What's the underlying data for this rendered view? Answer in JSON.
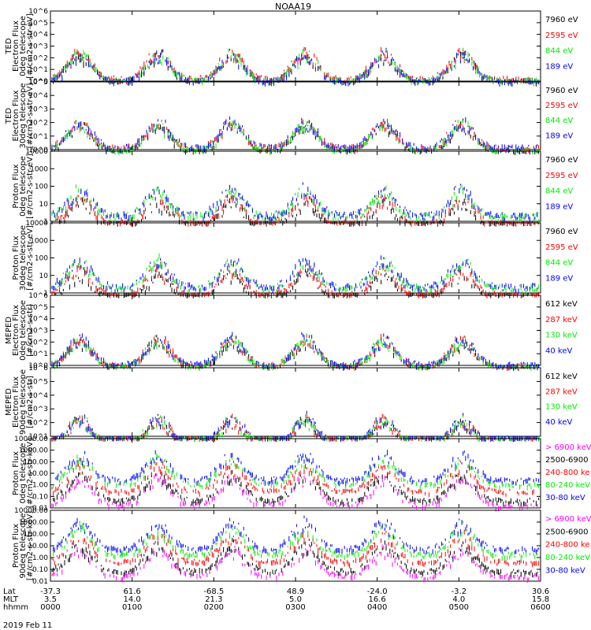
{
  "title": "NOAA19",
  "date_label": "2019 Feb 11",
  "colors": {
    "blue": "#0000ff",
    "red": "#ff0000",
    "green": "#00ee00",
    "black": "#000000",
    "magenta": "#ff00ff"
  },
  "xaxis": {
    "row_labels": [
      "Lat",
      "MLT",
      "hhmm"
    ],
    "ticks": [
      {
        "lat": "-37.3",
        "mlt": "3.5",
        "hhmm": "0000"
      },
      {
        "lat": "61.6",
        "mlt": "14.0",
        "hhmm": "0100"
      },
      {
        "lat": "-68.5",
        "mlt": "21.3",
        "hhmm": "0200"
      },
      {
        "lat": "48.9",
        "mlt": "5.0",
        "hhmm": "0300"
      },
      {
        "lat": "-24.0",
        "mlt": "16.6",
        "hhmm": "0400"
      },
      {
        "lat": "-3.2",
        "mlt": "4.0",
        "hhmm": "0500"
      },
      {
        "lat": "30.6",
        "mlt": "15.8",
        "hhmm": "0600"
      }
    ]
  },
  "chart_data": [
    {
      "type": "scatter",
      "panel": "ted-electron-0deg",
      "ylabel": [
        "TED",
        "Electron Flux",
        "0deg telescope",
        "[#/cm2-s-str-eV]"
      ],
      "yscale": "log",
      "ylim": [
        1,
        1000000
      ],
      "yticks": [
        "10^0",
        "10^1",
        "10^2",
        "10^3",
        "10^4",
        "10^5",
        "10^6"
      ],
      "legend": [
        {
          "label": "7960 eV",
          "color": "#000000"
        },
        {
          "label": "2595 eV",
          "color": "#ff0000"
        },
        {
          "label": "844 eV",
          "color": "#00ee00"
        },
        {
          "label": "189 eV",
          "color": "#0000ff"
        }
      ],
      "series": [
        {
          "name": "7960 eV",
          "color": "#000000",
          "level": 1.2
        },
        {
          "name": "2595 eV",
          "color": "#ff0000",
          "level": 1.8
        },
        {
          "name": "844 eV",
          "color": "#00ee00",
          "level": 1.3
        },
        {
          "name": "189 eV",
          "color": "#0000ff",
          "level": 1.1
        }
      ]
    },
    {
      "type": "scatter",
      "panel": "ted-electron-30deg",
      "ylabel": [
        "TED",
        "Electron Flux",
        "30deg telescope",
        "[#/cm2-s-str-eV]"
      ],
      "yscale": "log",
      "ylim": [
        1,
        100000
      ],
      "yticks": [
        "10^0",
        "10^1",
        "10^2",
        "10^3",
        "10^4",
        "10^5"
      ],
      "legend": [
        {
          "label": "7960 eV",
          "color": "#000000"
        },
        {
          "label": "2595 eV",
          "color": "#ff0000"
        },
        {
          "label": "844 eV",
          "color": "#00ee00"
        },
        {
          "label": "189 eV",
          "color": "#0000ff"
        }
      ],
      "series": [
        {
          "name": "7960 eV",
          "color": "#000000",
          "level": 1.0
        },
        {
          "name": "2595 eV",
          "color": "#ff0000",
          "level": 1.5
        },
        {
          "name": "844 eV",
          "color": "#00ee00",
          "level": 1.1
        },
        {
          "name": "189 eV",
          "color": "#0000ff",
          "level": 1.6
        }
      ]
    },
    {
      "type": "scatter",
      "panel": "ted-proton-0deg",
      "ylabel": [
        "Proton Flux",
        "0deg telescope",
        "[#/cm2-s-str-eV]"
      ],
      "yscale": "log",
      "ylim": [
        1,
        10000
      ],
      "yticks": [
        "1",
        "10",
        "100",
        "1000",
        "10000"
      ],
      "legend": [
        {
          "label": "7960 eV",
          "color": "#000000"
        },
        {
          "label": "2595 eV",
          "color": "#ff0000"
        },
        {
          "label": "844 eV",
          "color": "#00ee00"
        },
        {
          "label": "189 eV",
          "color": "#0000ff"
        }
      ],
      "series": [
        {
          "name": "7960 eV",
          "color": "#000000",
          "level": 0.5
        },
        {
          "name": "2595 eV",
          "color": "#ff0000",
          "level": 0.8
        },
        {
          "name": "844 eV",
          "color": "#00ee00",
          "level": 2.0
        },
        {
          "name": "189 eV",
          "color": "#0000ff",
          "level": 2.3
        }
      ]
    },
    {
      "type": "scatter",
      "panel": "ted-proton-30deg",
      "ylabel": [
        "Proton Flux",
        "30deg telescope",
        "[#/cm2-s-str-eV]"
      ],
      "yscale": "log",
      "ylim": [
        1,
        10000
      ],
      "yticks": [
        "1",
        "10",
        "100",
        "1000",
        "10000"
      ],
      "legend": [
        {
          "label": "7960 eV",
          "color": "#000000"
        },
        {
          "label": "2595 eV",
          "color": "#ff0000"
        },
        {
          "label": "844 eV",
          "color": "#00ee00"
        },
        {
          "label": "189 eV",
          "color": "#0000ff"
        }
      ],
      "series": [
        {
          "name": "7960 eV",
          "color": "#000000",
          "level": 0.5
        },
        {
          "name": "2595 eV",
          "color": "#ff0000",
          "level": 0.8
        },
        {
          "name": "844 eV",
          "color": "#00ee00",
          "level": 2.0
        },
        {
          "name": "189 eV",
          "color": "#0000ff",
          "level": 2.4
        }
      ]
    },
    {
      "type": "scatter",
      "panel": "meped-electron-0deg",
      "ylabel": [
        "MEPED",
        "Electron Flux",
        "0deg telescope",
        "[#/cm2-s-str]"
      ],
      "yscale": "log",
      "ylim": [
        1,
        1000000
      ],
      "yticks": [
        "10^0",
        "10^1",
        "10^2",
        "10^3",
        "10^4",
        "10^5",
        "10^6"
      ],
      "legend": [
        {
          "label": "612 keV",
          "color": "#000000"
        },
        {
          "label": "287 keV",
          "color": "#ff0000"
        },
        {
          "label": "130 keV",
          "color": "#00ee00"
        },
        {
          "label": "40 keV",
          "color": "#0000ff"
        }
      ],
      "series": [
        {
          "name": "612 keV",
          "color": "#000000",
          "level": 0.9
        },
        {
          "name": "287 keV",
          "color": "#ff0000",
          "level": 1.1
        },
        {
          "name": "130 keV",
          "color": "#00ee00",
          "level": 1.0
        },
        {
          "name": "40 keV",
          "color": "#0000ff",
          "level": 1.4
        }
      ]
    },
    {
      "type": "scatter",
      "panel": "meped-electron-90deg",
      "ylabel": [
        "MEPED",
        "Electron Flux",
        "90deg telescope",
        "[#/cm2-s-str]"
      ],
      "yscale": "log",
      "ylim": [
        10,
        1000000
      ],
      "yticks": [
        "10^1",
        "10^2",
        "10^3",
        "10^4",
        "10^5",
        "10^6"
      ],
      "legend": [
        {
          "label": "612 keV",
          "color": "#000000"
        },
        {
          "label": "287 keV",
          "color": "#ff0000"
        },
        {
          "label": "130 keV",
          "color": "#00ee00"
        },
        {
          "label": "40 keV",
          "color": "#0000ff"
        }
      ],
      "series": [
        {
          "name": "612 keV",
          "color": "#000000",
          "level": 2.0
        },
        {
          "name": "287 keV",
          "color": "#ff0000",
          "level": 2.3
        },
        {
          "name": "130 keV",
          "color": "#00ee00",
          "level": 2.6
        },
        {
          "name": "40 keV",
          "color": "#0000ff",
          "level": 3.0
        }
      ]
    },
    {
      "type": "scatter",
      "panel": "meped-proton-0deg",
      "ylabel": [
        "Proton Flux",
        "0deg telescope",
        "[#/cm2-s-str-keV]"
      ],
      "yscale": "log",
      "ylim": [
        0.01,
        10000
      ],
      "yticks": [
        "0.01",
        "0.10",
        "1.00",
        "10.00",
        "100.00",
        "1000.00",
        "10000.00"
      ],
      "legend": [
        {
          "label": "> 6900 keV",
          "color": "#ff00ff"
        },
        {
          "label": "2500-6900",
          "color": "#000000"
        },
        {
          "label": "240-800 ke",
          "color": "#ff0000"
        },
        {
          "label": "80-240 keV",
          "color": "#00ee00"
        },
        {
          "label": "30-80 keV",
          "color": "#0000ff"
        }
      ],
      "series": [
        {
          "name": "> 6900 keV",
          "color": "#ff00ff",
          "level": 0.02
        },
        {
          "name": "2500-6900",
          "color": "#000000",
          "level": 0.05
        },
        {
          "name": "240-800 ke",
          "color": "#ff0000",
          "level": 0.3
        },
        {
          "name": "80-240 keV",
          "color": "#00ee00",
          "level": 1.2
        },
        {
          "name": "30-80 keV",
          "color": "#0000ff",
          "level": 3
        }
      ]
    },
    {
      "type": "scatter",
      "panel": "meped-proton-90deg",
      "ylabel": [
        "Proton Flux",
        "90deg telescope",
        "[#/cm2-s-str-keV]"
      ],
      "yscale": "log",
      "ylim": [
        0.01,
        10000
      ],
      "yticks": [
        "0.01",
        "0.10",
        "1.00",
        "10.00",
        "100.00",
        "1000.00",
        "10000.00"
      ],
      "legend": [
        {
          "label": "> 6900 keV",
          "color": "#ff00ff"
        },
        {
          "label": "2500-6900",
          "color": "#000000"
        },
        {
          "label": "240-800 ke",
          "color": "#ff0000"
        },
        {
          "label": "80-240 keV",
          "color": "#00ee00"
        },
        {
          "label": "30-80 keV",
          "color": "#0000ff"
        }
      ],
      "series": [
        {
          "name": "> 6900 keV",
          "color": "#ff00ff",
          "level": 0.03
        },
        {
          "name": "2500-6900",
          "color": "#000000",
          "level": 0.08
        },
        {
          "name": "240-800 ke",
          "color": "#ff0000",
          "level": 0.5
        },
        {
          "name": "80-240 keV",
          "color": "#00ee00",
          "level": 2
        },
        {
          "name": "30-80 keV",
          "color": "#0000ff",
          "level": 6
        }
      ]
    }
  ]
}
